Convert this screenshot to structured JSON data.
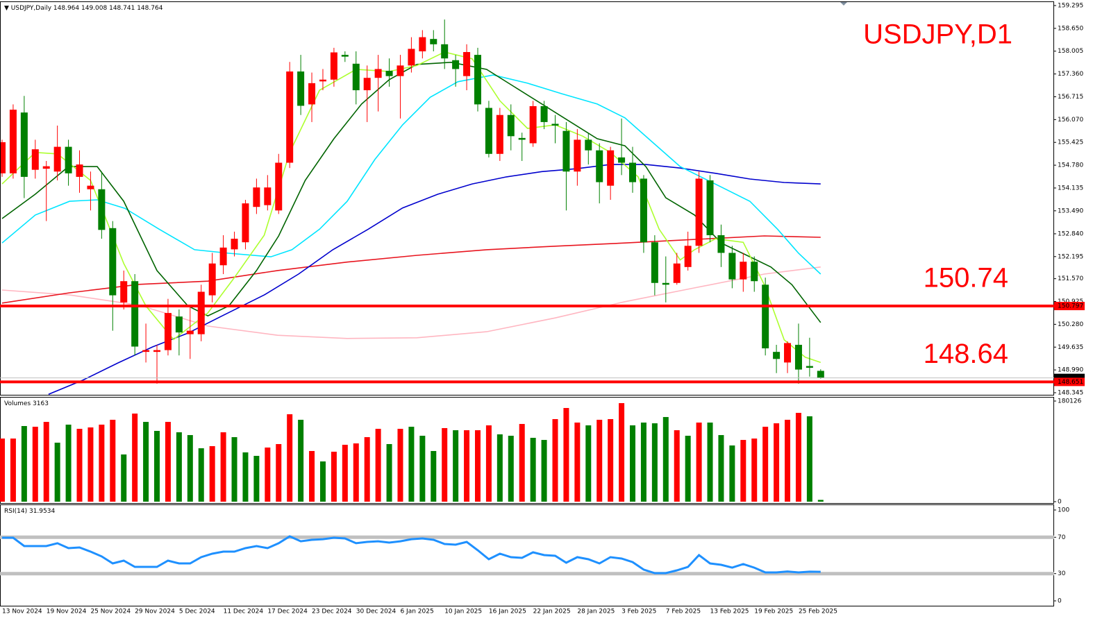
{
  "chart_data": [
    {
      "type": "candlestick",
      "symbol": "USDJPY,Daily",
      "title": "USDJPY,D1",
      "categories": [
        "13 Nov 2024",
        null,
        null,
        null,
        "19 Nov 2024",
        null,
        null,
        null,
        "25 Nov 2024",
        null,
        null,
        null,
        "29 Nov 2024",
        null,
        null,
        null,
        "5 Dec 2024",
        null,
        null,
        null,
        "11 Dec 2024",
        null,
        null,
        null,
        "17 Dec 2024",
        null,
        null,
        null,
        "23 Dec 2024",
        null,
        null,
        null,
        "30 Dec 2024",
        null,
        null,
        null,
        "6 Jan 2025",
        null,
        null,
        null,
        "10 Jan 2025",
        null,
        null,
        null,
        "16 Jan 2025",
        null,
        null,
        null,
        "22 Jan 2025",
        null,
        null,
        null,
        "28 Jan 2025",
        null,
        null,
        null,
        "3 Feb 2025",
        null,
        null,
        null,
        "7 Feb 2025",
        null,
        null,
        null,
        "13 Feb 2025",
        null,
        null,
        null,
        "19 Feb 2025",
        null,
        null,
        null,
        "25 Feb 2025",
        null,
        null
      ],
      "open": [
        154.55,
        154.55,
        156.27,
        154.65,
        154.68,
        154.6,
        155.3,
        154.45,
        154.1,
        154.1,
        153.0,
        150.9,
        151.5,
        149.5,
        149.5,
        149.55,
        150.5,
        150.0,
        150.0,
        151.1,
        151.95,
        152.4,
        152.6,
        153.6,
        153.65,
        153.5,
        154.85,
        157.43,
        156.5,
        157.15,
        157.2,
        157.9,
        157.65,
        156.9,
        157.25,
        157.45,
        157.3,
        157.6,
        158.0,
        158.35,
        158.2,
        157.75,
        157.3,
        157.9,
        156.4,
        155.1,
        156.2,
        155.55,
        155.4,
        156.45,
        155.95,
        155.75,
        154.6,
        155.5,
        155.2,
        154.2,
        155.0,
        154.85,
        154.4,
        152.6,
        151.45,
        151.45,
        151.9,
        152.5,
        154.35,
        152.8,
        152.3,
        151.55,
        152.05,
        151.4,
        149.5,
        149.2,
        149.7,
        149.1,
        148.964
      ],
      "high": [
        155.5,
        156.5,
        156.74,
        155.5,
        154.9,
        155.9,
        155.5,
        155.2,
        154.6,
        154.6,
        153.2,
        151.8,
        151.7,
        150.3,
        149.7,
        151.0,
        150.7,
        150.8,
        151.4,
        152.3,
        152.8,
        152.9,
        153.8,
        154.4,
        154.5,
        155.1,
        157.7,
        157.9,
        157.4,
        157.5,
        158.1,
        158.0,
        158.0,
        157.6,
        157.9,
        157.8,
        157.9,
        158.4,
        158.6,
        158.6,
        158.9,
        157.9,
        158.2,
        158.1,
        156.6,
        156.4,
        156.5,
        155.7,
        156.6,
        156.6,
        156.2,
        156.0,
        155.8,
        155.7,
        155.4,
        155.3,
        156.1,
        155.3,
        154.5,
        152.8,
        152.2,
        152.3,
        152.9,
        154.6,
        154.5,
        153.1,
        152.5,
        152.3,
        152.2,
        151.6,
        149.7,
        149.8,
        150.3,
        149.9,
        149.008
      ],
      "low": [
        154.45,
        154.4,
        153.85,
        154.4,
        153.2,
        154.35,
        154.2,
        154.0,
        153.5,
        152.7,
        150.1,
        150.7,
        149.4,
        149.2,
        148.6,
        149.4,
        149.4,
        149.3,
        149.8,
        150.9,
        151.7,
        152.2,
        152.4,
        153.4,
        153.5,
        153.4,
        154.7,
        156.2,
        156.0,
        156.9,
        157.0,
        157.7,
        156.5,
        156.0,
        156.3,
        157.0,
        156.1,
        157.4,
        157.8,
        158.0,
        157.5,
        157.0,
        156.9,
        156.3,
        155.0,
        154.9,
        155.2,
        154.9,
        155.3,
        155.8,
        155.4,
        153.5,
        154.2,
        154.8,
        153.7,
        153.8,
        154.5,
        154.0,
        152.3,
        151.1,
        150.9,
        151.4,
        151.8,
        152.3,
        152.6,
        151.9,
        151.3,
        151.2,
        151.2,
        149.4,
        148.9,
        148.9,
        148.6,
        148.8,
        148.741
      ],
      "close": [
        155.43,
        156.35,
        154.45,
        155.23,
        154.75,
        155.3,
        154.55,
        154.8,
        154.2,
        152.95,
        151.1,
        151.5,
        149.65,
        149.55,
        149.55,
        150.6,
        150.05,
        150.1,
        151.2,
        152.0,
        152.45,
        152.7,
        153.7,
        154.15,
        154.15,
        154.85,
        157.43,
        156.46,
        157.1,
        157.2,
        157.97,
        157.85,
        156.9,
        157.25,
        157.5,
        157.3,
        157.6,
        158.07,
        158.4,
        158.2,
        157.8,
        157.5,
        157.98,
        156.5,
        155.1,
        156.2,
        155.6,
        155.5,
        156.45,
        156.0,
        155.9,
        154.6,
        155.5,
        155.2,
        154.3,
        155.2,
        154.85,
        154.3,
        152.6,
        151.45,
        151.4,
        152.0,
        152.5,
        154.4,
        152.8,
        152.3,
        151.55,
        152.05,
        151.5,
        149.6,
        149.3,
        149.75,
        149.0,
        149.05,
        148.764
      ],
      "up_color": "#ff0000",
      "down_color": "#008000",
      "ylim": [
        148.345,
        159.295
      ],
      "yticks": [
        148.345,
        {
          "value": 148.99,
          "label": "148.990"
        },
        149.635,
        {
          "value": 150.28,
          "label": "150.280"
        },
        150.925,
        {
          "value": 151.57,
          "label": "151.570"
        },
        152.195,
        {
          "value": 152.84,
          "label": "152.840"
        },
        {
          "value": 153.49,
          "label": "153.490"
        },
        154.135,
        {
          "value": 154.78,
          "label": "154.780"
        },
        155.425,
        {
          "value": 156.07,
          "label": "156.070"
        },
        156.715,
        {
          "value": 157.36,
          "label": "157.360"
        },
        158.005,
        {
          "value": 158.65,
          "label": "158.650"
        },
        159.295
      ],
      "overlays": [
        {
          "color": "#ffb6c1",
          "x": [
            0,
            6.1,
            12.4,
            18.6,
            24.9,
            31.2,
            37.5,
            43.8,
            50,
            56.3,
            62.6,
            68.9,
            74
          ],
          "values": [
            151.25,
            151.11,
            150.82,
            150.23,
            149.97,
            149.88,
            149.9,
            150.07,
            150.46,
            150.92,
            151.31,
            151.7,
            151.9
          ]
        },
        {
          "color": "#e8141e",
          "x": [
            0,
            6.1,
            12.4,
            18.6,
            24.9,
            31.2,
            37.5,
            43.8,
            50,
            56.3,
            62.6,
            68.9,
            74
          ],
          "values": [
            150.88,
            151.17,
            151.41,
            151.5,
            151.8,
            152.04,
            152.23,
            152.39,
            152.49,
            152.58,
            152.68,
            152.78,
            152.74
          ]
        },
        {
          "color": "#0000cd",
          "x": [
            4.2,
            7.3,
            10.5,
            13.6,
            16.8,
            19.9,
            23.7,
            26.8,
            29.9,
            33.1,
            36.2,
            39.4,
            42.5,
            45.6,
            48.8,
            51.9,
            55,
            58.2,
            61.3,
            64.5,
            67.6,
            70.7,
            74
          ],
          "values": [
            148.3,
            148.7,
            149.19,
            149.64,
            150.03,
            150.52,
            151.11,
            151.7,
            152.39,
            152.97,
            153.57,
            153.96,
            154.25,
            154.45,
            154.6,
            154.68,
            154.8,
            154.8,
            154.7,
            154.55,
            154.39,
            154.29,
            154.25
          ]
        },
        {
          "color": "#00e5ff",
          "x": [
            0,
            3,
            6.1,
            8.6,
            11.1,
            14.2,
            17.4,
            20.5,
            24.3,
            26.2,
            28.7,
            31.2,
            33.7,
            36.2,
            38.7,
            41.2,
            44.4,
            47.5,
            50.6,
            53.8,
            56.3,
            58.8,
            61.3,
            65.1,
            67.6,
            70.1,
            72,
            74
          ],
          "values": [
            152.58,
            153.37,
            153.76,
            153.8,
            153.56,
            152.97,
            152.39,
            152.29,
            152.19,
            152.39,
            152.97,
            153.76,
            154.94,
            155.92,
            156.7,
            157.14,
            157.33,
            157.1,
            156.8,
            156.51,
            156.12,
            155.43,
            154.74,
            154.15,
            153.76,
            152.97,
            152.29,
            151.7
          ]
        },
        {
          "color": "#006400",
          "x": [
            0,
            3,
            6,
            8.6,
            11,
            14,
            16.8,
            18.6,
            20.5,
            23,
            25,
            27.4,
            30,
            32.5,
            35,
            37.5,
            40.6,
            43.8,
            46.3,
            48.8,
            51.3,
            53.8,
            56.3,
            58.2,
            60,
            62.6,
            65,
            67.6,
            69.5,
            71.4,
            74
          ],
          "values": [
            153.27,
            153.96,
            154.74,
            154.74,
            153.76,
            151.8,
            150.8,
            150.52,
            150.8,
            151.8,
            152.78,
            154.35,
            155.53,
            156.51,
            157.2,
            157.63,
            157.69,
            157.49,
            157.0,
            156.51,
            156.02,
            155.53,
            155.33,
            154.74,
            153.86,
            153.37,
            152.58,
            152.19,
            151.9,
            151.4,
            150.33
          ]
        },
        {
          "color": "#adff2f",
          "x": [
            0,
            3,
            5,
            8,
            11,
            13,
            15.5,
            18.6,
            21,
            23.7,
            26,
            28.7,
            32,
            35,
            37.5,
            40,
            42.5,
            45,
            47.5,
            50,
            52.5,
            55,
            57.5,
            59.4,
            61.3,
            62.6,
            64.5,
            67,
            68.9,
            70.7,
            72.6,
            74
          ],
          "values": [
            154.25,
            155.14,
            155.1,
            154.35,
            152.0,
            150.8,
            149.85,
            150.6,
            151.6,
            152.8,
            155.14,
            156.9,
            157.49,
            157.43,
            157.6,
            157.98,
            157.79,
            156.6,
            155.82,
            155.92,
            155.6,
            155.14,
            154.45,
            152.97,
            152.1,
            152.39,
            152.7,
            152.6,
            151.4,
            149.84,
            149.35,
            149.2
          ]
        }
      ],
      "hlines": [
        {
          "value": 150.797,
          "color": "#ff0000",
          "note": "150.74"
        },
        {
          "value": 148.651,
          "color": "#ff0000",
          "note": "148.64"
        }
      ]
    },
    {
      "type": "bar",
      "title": "Volumes",
      "values": [
        113000,
        113000,
        135400,
        134100,
        142800,
        105600,
        137900,
        130400,
        132900,
        137900,
        146600,
        84500,
        157700,
        142800,
        126700,
        142800,
        124200,
        119200,
        95600,
        99400,
        124200,
        115500,
        88200,
        82000,
        96900,
        103100,
        156500,
        146600,
        90700,
        72000,
        89400,
        101800,
        104300,
        115500,
        130400,
        103100,
        130400,
        134100,
        118000,
        90700,
        131700,
        127900,
        127900,
        127900,
        136600,
        120500,
        118000,
        139100,
        114300,
        110500,
        147800,
        167700,
        141600,
        136600,
        146600,
        147800,
        176400,
        136600,
        141600,
        140300,
        151500,
        127900,
        118000,
        141600,
        141600,
        119200,
        100600,
        110500,
        113000,
        134100,
        140300,
        146600,
        159000,
        152800,
        3163
      ],
      "colors": [
        "#ff0000",
        "#ff0000",
        "#008000",
        "#ff0000",
        "#ff0000",
        "#008000",
        "#008000",
        "#ff0000",
        "#ff0000",
        "#ff0000",
        "#ff0000",
        "#008000",
        "#ff0000",
        "#008000",
        "#008000",
        "#ff0000",
        "#008000",
        "#008000",
        "#008000",
        "#ff0000",
        "#ff0000",
        "#008000",
        "#008000",
        "#008000",
        "#ff0000",
        "#ff0000",
        "#ff0000",
        "#008000",
        "#ff0000",
        "#008000",
        "#ff0000",
        "#ff0000",
        "#ff0000",
        "#ff0000",
        "#ff0000",
        "#008000",
        "#ff0000",
        "#008000",
        "#008000",
        "#008000",
        "#ff0000",
        "#008000",
        "#ff0000",
        "#ff0000",
        "#ff0000",
        "#008000",
        "#008000",
        "#ff0000",
        "#008000",
        "#008000",
        "#ff0000",
        "#ff0000",
        "#ff0000",
        "#008000",
        "#ff0000",
        "#ff0000",
        "#ff0000",
        "#008000",
        "#008000",
        "#008000",
        "#008000",
        "#ff0000",
        "#008000",
        "#ff0000",
        "#008000",
        "#008000",
        "#008000",
        "#ff0000",
        "#ff0000",
        "#ff0000",
        "#ff0000",
        "#ff0000",
        "#ff0000",
        "#008000",
        "#008000"
      ],
      "ylim": [
        0,
        180126
      ],
      "yticks": [
        0,
        180126
      ]
    },
    {
      "type": "line",
      "title": "RSI(14)",
      "color": "#1e90ff",
      "values": [
        69.5,
        69.5,
        60.3,
        60.3,
        60.3,
        63.4,
        58,
        58.8,
        54.2,
        48.9,
        41.2,
        44.3,
        37.4,
        37.4,
        37.4,
        44.3,
        41.2,
        41.2,
        48.1,
        51.9,
        54.2,
        54.2,
        58,
        60.3,
        58,
        63.4,
        71,
        65.6,
        67.2,
        67.9,
        69.5,
        68.7,
        63.4,
        64.9,
        65.6,
        64.1,
        65.6,
        67.9,
        68.7,
        67.2,
        62.6,
        61.8,
        64.9,
        55.7,
        45.8,
        51.9,
        48.1,
        47.3,
        53.4,
        50.4,
        49.6,
        42,
        48.1,
        45.8,
        41.2,
        48.1,
        46.6,
        42.7,
        34.4,
        30.5,
        30.5,
        33.6,
        37.4,
        50.4,
        41.2,
        39.7,
        36.6,
        40.5,
        36.6,
        31.3,
        31.3,
        32.4,
        31.3,
        32.1,
        31.9534
      ],
      "ylim": [
        0,
        100
      ],
      "yticks": [
        0,
        30,
        70,
        100
      ],
      "levels": [
        30,
        70
      ],
      "level_color": "#c0c0c0"
    }
  ]
}
